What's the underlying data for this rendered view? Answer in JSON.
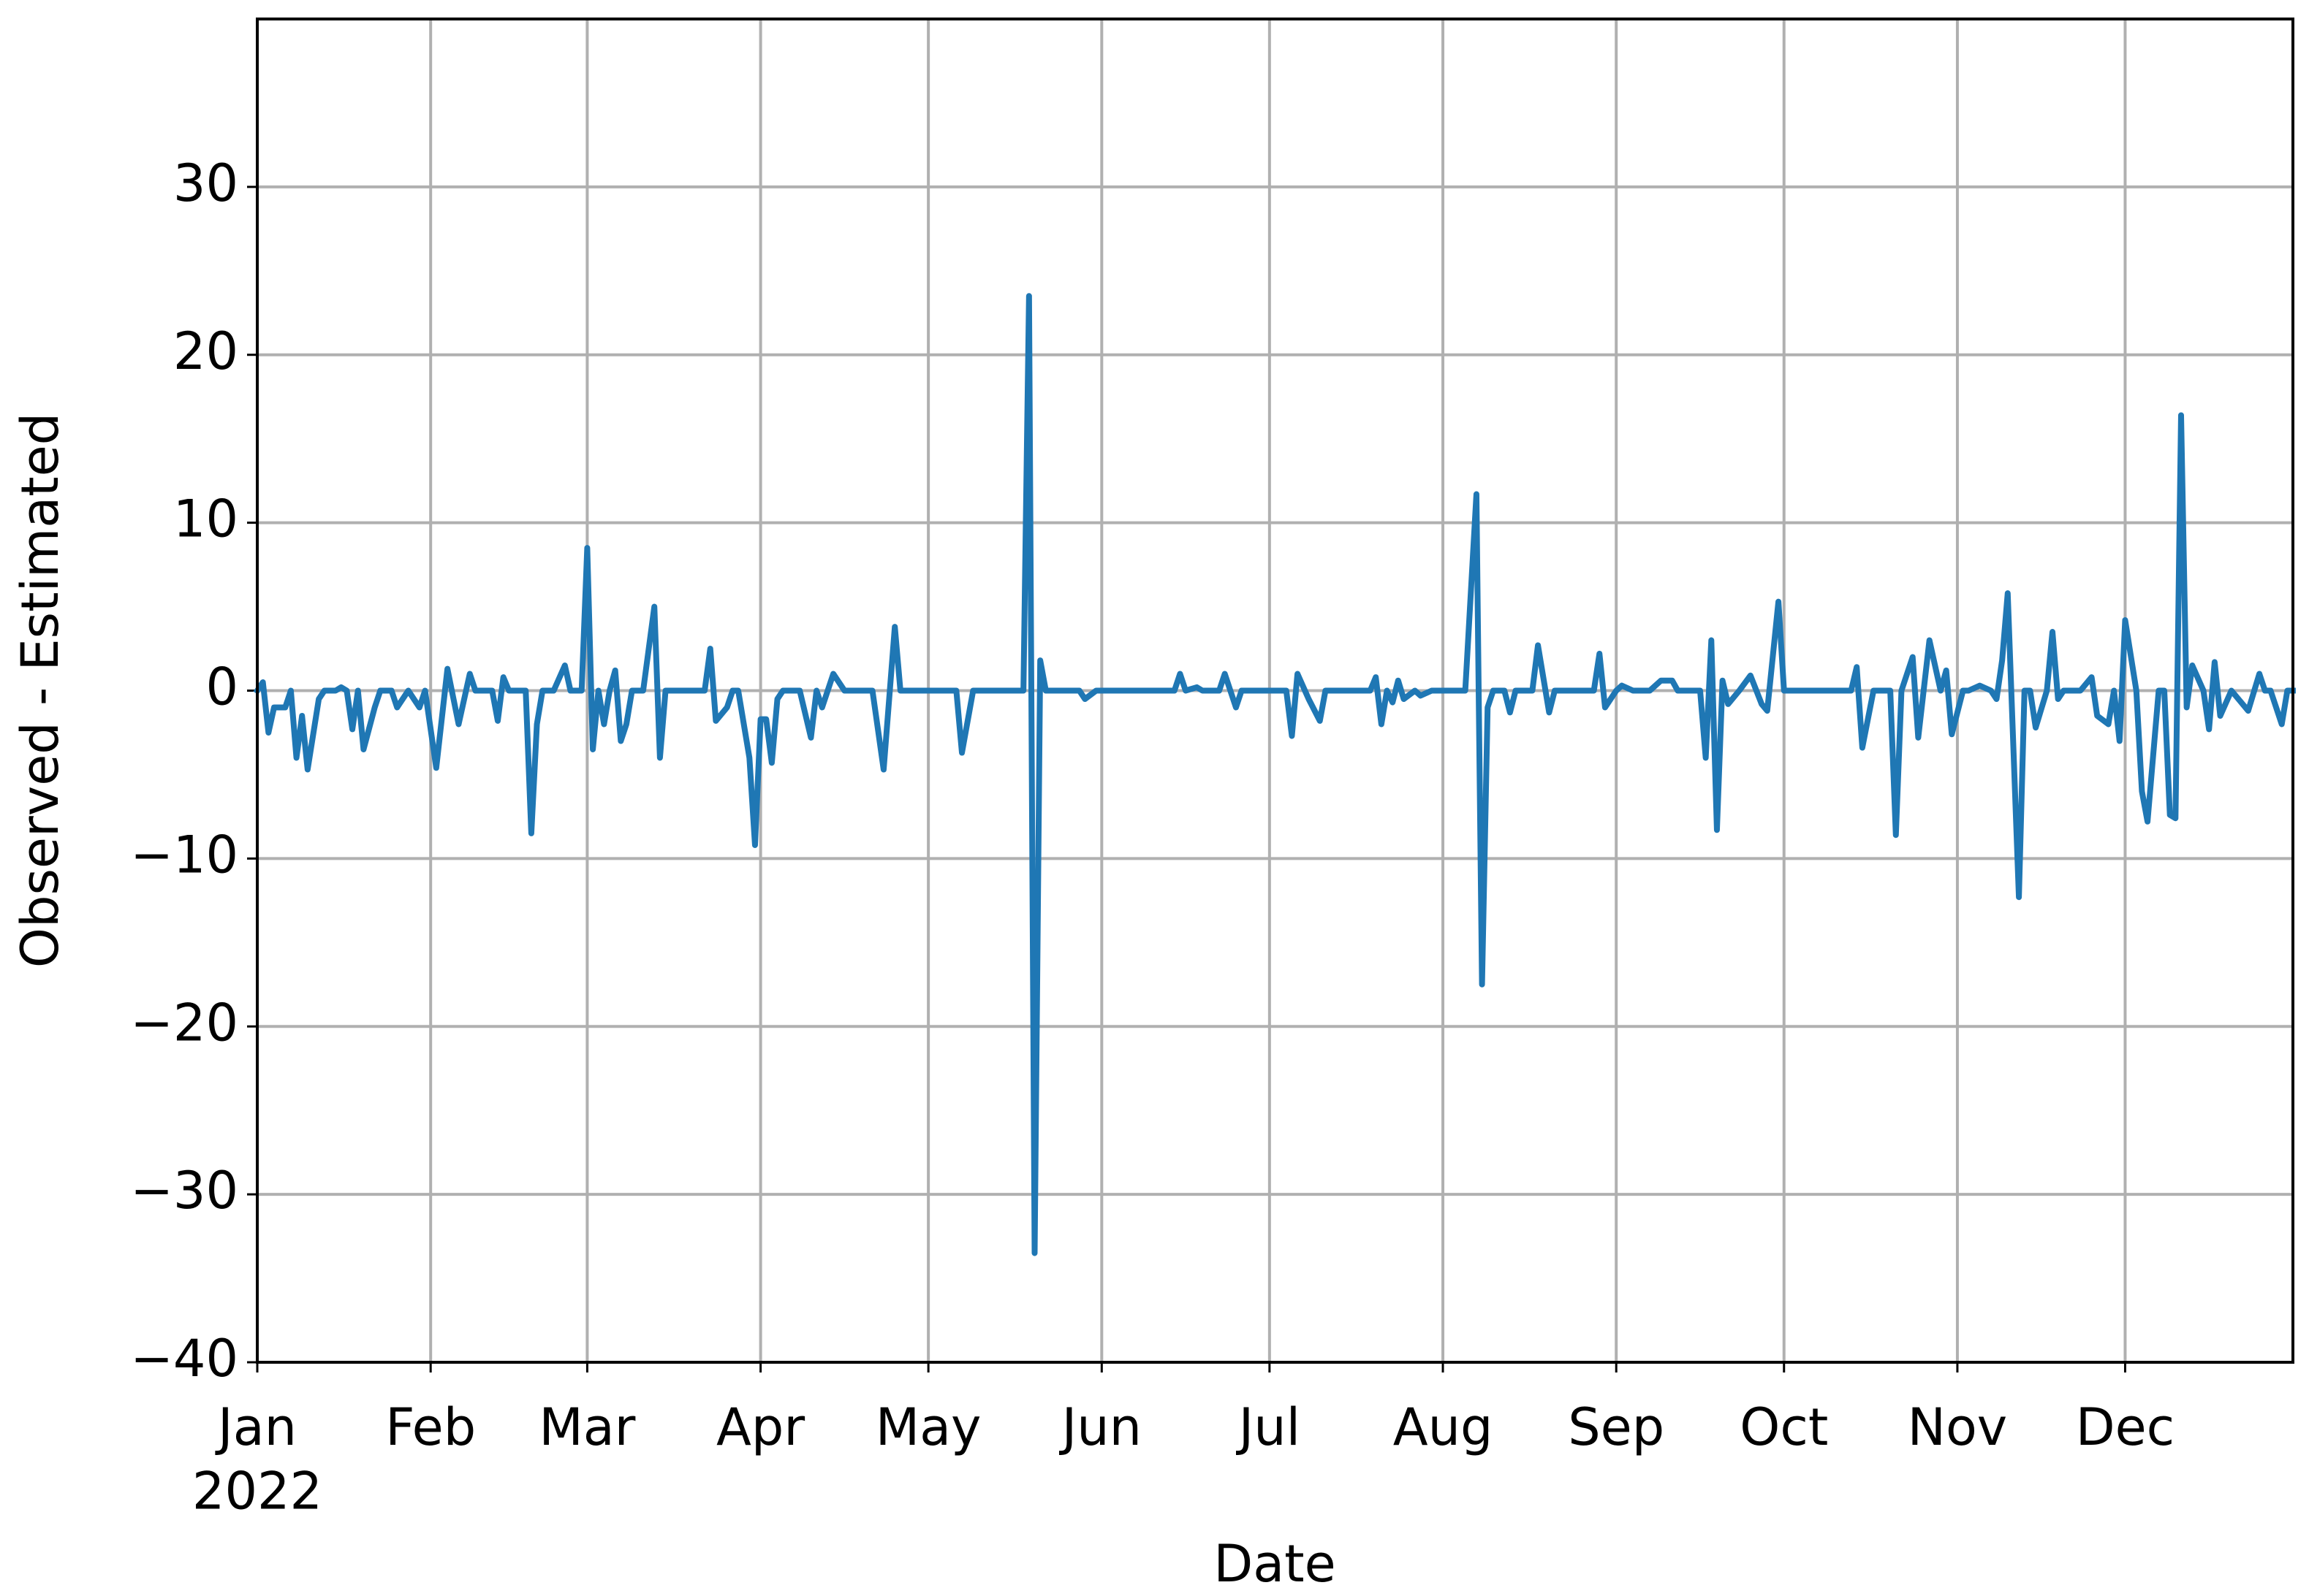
{
  "chart_data": {
    "type": "line",
    "x_label": "Date",
    "y_label": "Observed - Estimated",
    "xlim": [
      0,
      364
    ],
    "ylim": [
      -40,
      40
    ],
    "xticks": [
      {
        "value": 0,
        "label": "Jan\n2022"
      },
      {
        "value": 31,
        "label": "Feb"
      },
      {
        "value": 59,
        "label": "Mar"
      },
      {
        "value": 90,
        "label": "Apr"
      },
      {
        "value": 120,
        "label": "May"
      },
      {
        "value": 151,
        "label": "Jun"
      },
      {
        "value": 181,
        "label": "Jul"
      },
      {
        "value": 212,
        "label": "Aug"
      },
      {
        "value": 243,
        "label": "Sep"
      },
      {
        "value": 273,
        "label": "Oct"
      },
      {
        "value": 304,
        "label": "Nov"
      },
      {
        "value": 334,
        "label": "Dec"
      }
    ],
    "yticks": [
      {
        "value": -40,
        "label": "−40"
      },
      {
        "value": -30,
        "label": "−30"
      },
      {
        "value": -20,
        "label": "−20"
      },
      {
        "value": -10,
        "label": "−10"
      },
      0,
      10,
      20,
      30
    ],
    "grid": true,
    "series": [
      {
        "color": "#1f77b4",
        "x": [
          0,
          1,
          2,
          3,
          5,
          6,
          7,
          8,
          9,
          11,
          12,
          14,
          15,
          16,
          17,
          18,
          19,
          21,
          22,
          24,
          25,
          27,
          29,
          30,
          32,
          34,
          36,
          38,
          39,
          42,
          43,
          44,
          45,
          46,
          48,
          49,
          50,
          51,
          53,
          55,
          56,
          58,
          59,
          60,
          61,
          62,
          63,
          64,
          65,
          66,
          67,
          69,
          71,
          72,
          73,
          80,
          81,
          82,
          84,
          85,
          86,
          88,
          89,
          90,
          91,
          92,
          93,
          94,
          97,
          99,
          100,
          101,
          103,
          105,
          110,
          112,
          114,
          115,
          125,
          126,
          128,
          137,
          138,
          139,
          140,
          141,
          147,
          148,
          150,
          164,
          165,
          166,
          168,
          169,
          172,
          173,
          175,
          176,
          184,
          185,
          186,
          188,
          190,
          191,
          199,
          200,
          201,
          202,
          203,
          204,
          205,
          207,
          208,
          210,
          216,
          218,
          219,
          220,
          221,
          223,
          224,
          225,
          228,
          229,
          231,
          232,
          239,
          240,
          241,
          243,
          244,
          246,
          249,
          251,
          253,
          254,
          258,
          259,
          260,
          261,
          262,
          263,
          265,
          267,
          269,
          270,
          272,
          273,
          285,
          286,
          287,
          289,
          292,
          293,
          294,
          296,
          297,
          299,
          301,
          302,
          303,
          305,
          306,
          308,
          310,
          311,
          312,
          313,
          315,
          316,
          317,
          318,
          320,
          321,
          322,
          323,
          326,
          328,
          329,
          331,
          332,
          333,
          334,
          336,
          337,
          338,
          340,
          341,
          342,
          343,
          344,
          345,
          346,
          348,
          349,
          350,
          351,
          353,
          356,
          358,
          359,
          360,
          362,
          363,
          364
        ],
        "values": [
          0,
          0.5,
          -2.5,
          -1,
          -1,
          0,
          -4,
          -1.5,
          -4.7,
          -0.5,
          0,
          0,
          0.2,
          0,
          -2.3,
          0,
          -3.5,
          -1,
          0,
          0,
          -1,
          0,
          -1,
          0,
          -4.6,
          1.3,
          -2,
          1,
          0,
          0,
          -1.8,
          0.8,
          0,
          0,
          0,
          -8.5,
          -2,
          0,
          0,
          1.5,
          0,
          0,
          8.5,
          -3.5,
          0,
          -2,
          0,
          1.2,
          -3,
          -2,
          0,
          0,
          5,
          -4,
          0,
          0,
          2.5,
          -1.8,
          -1,
          0,
          0,
          -4,
          -9.2,
          -1.7,
          -1.7,
          -4.3,
          -0.5,
          0,
          0,
          -2.8,
          0,
          -1,
          1,
          0,
          0,
          -4.7,
          3.8,
          0,
          0,
          -3.7,
          0,
          0,
          23.5,
          -33.5,
          1.8,
          0,
          0,
          -0.5,
          0,
          0,
          1,
          0,
          0.2,
          0,
          0,
          1,
          -1,
          0,
          0,
          -2.7,
          1,
          -0.5,
          -1.8,
          0,
          0,
          0.8,
          -2,
          0,
          -0.7,
          0.6,
          -0.5,
          0,
          -0.3,
          0,
          0,
          11.7,
          -17.5,
          -1,
          0,
          0,
          -1.3,
          0,
          0,
          2.7,
          -1.3,
          0,
          0,
          2.2,
          -1,
          0,
          0.3,
          0,
          0,
          0.6,
          0.6,
          0,
          0,
          -4,
          3,
          -8.3,
          0.6,
          -0.8,
          0,
          0.9,
          -0.8,
          -1.2,
          5.3,
          0,
          0,
          1.4,
          -3.4,
          0,
          0,
          -8.6,
          0,
          2,
          -2.8,
          3,
          0,
          1.2,
          -2.6,
          0,
          0,
          0.3,
          0,
          -0.5,
          1.8,
          5.8,
          -12.3,
          0,
          0,
          -2.2,
          0,
          3.5,
          -0.5,
          0,
          0,
          0.8,
          -1.5,
          -2,
          0,
          -3,
          4.2,
          0,
          -6,
          -7.8,
          0,
          0,
          -7.4,
          -7.6,
          16.4,
          -1,
          1.5,
          0,
          -2.3,
          1.7,
          -1.5,
          0,
          -1.2,
          1,
          0,
          0,
          -2,
          0,
          0
        ]
      }
    ]
  }
}
